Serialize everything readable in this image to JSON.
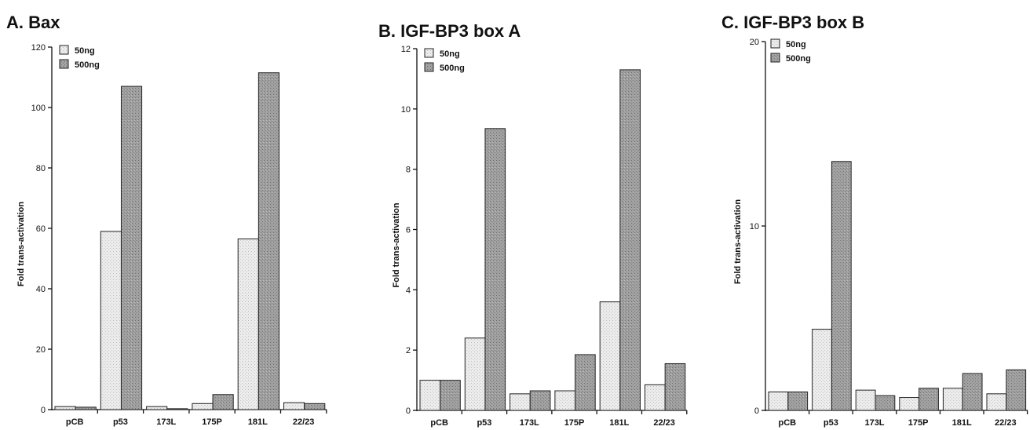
{
  "chart_data": [
    {
      "type": "bar",
      "title": "A. Bax",
      "ylabel": "Fold trans-activation",
      "xlabel": "",
      "categories": [
        "pCB",
        "p53",
        "173L",
        "175P",
        "181L",
        "22/23"
      ],
      "series": [
        {
          "name": "50ng",
          "values": [
            1,
            59,
            1,
            2,
            56.5,
            2.3
          ]
        },
        {
          "name": "500ng",
          "values": [
            0.8,
            107,
            0.3,
            5,
            111.5,
            2
          ]
        }
      ],
      "ylim": [
        0,
        120
      ],
      "yticks": [
        0,
        20,
        40,
        60,
        80,
        100,
        120
      ],
      "legend": "top-left",
      "grid": false
    },
    {
      "type": "bar",
      "title": "B. IGF-BP3 box A",
      "ylabel": "Fold trans-activation",
      "xlabel": "",
      "categories": [
        "pCB",
        "p53",
        "173L",
        "175P",
        "181L",
        "22/23"
      ],
      "series": [
        {
          "name": "50ng",
          "values": [
            1,
            2.4,
            0.55,
            0.65,
            3.6,
            0.85
          ]
        },
        {
          "name": "500ng",
          "values": [
            1,
            9.35,
            0.65,
            1.85,
            11.3,
            1.55
          ]
        }
      ],
      "ylim": [
        0,
        12
      ],
      "yticks": [
        0,
        2,
        4,
        6,
        8,
        10,
        12
      ],
      "legend": "top-left",
      "grid": false
    },
    {
      "type": "bar",
      "title": "C. IGF-BP3 box B",
      "ylabel": "Fold trans-activation",
      "xlabel": "",
      "categories": [
        "pCB",
        "p53",
        "173L",
        "175P",
        "181L",
        "22/23"
      ],
      "series": [
        {
          "name": "50ng",
          "values": [
            1,
            4.4,
            1.1,
            0.7,
            1.2,
            0.9
          ]
        },
        {
          "name": "500ng",
          "values": [
            1,
            13.5,
            0.8,
            1.2,
            2,
            2.2
          ]
        }
      ],
      "ylim": [
        0,
        20
      ],
      "yticks": [
        0,
        10,
        20
      ],
      "legend": "top-left",
      "grid": false
    }
  ],
  "colors": {
    "series_50ng": "#e6e6e6",
    "series_500ng": "#9b9b9b",
    "outline": "#222222"
  }
}
